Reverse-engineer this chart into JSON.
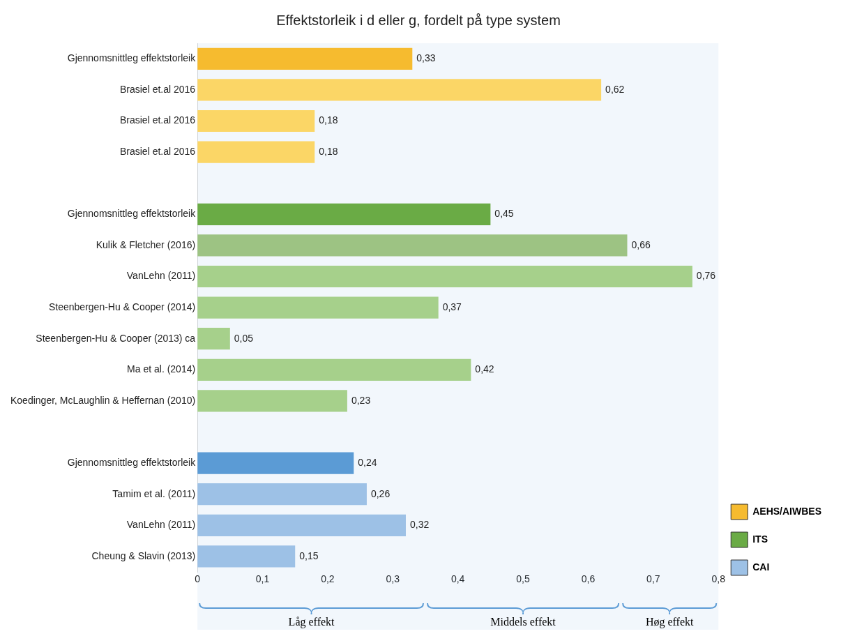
{
  "chart_data": {
    "type": "bar",
    "orientation": "horizontal",
    "title": "Effektstorleik i d eller g, fordelt på type system",
    "categories": [
      "Gjennomsnittleg effektstorleik",
      "Brasiel et.al 2016",
      "Brasiel et.al 2016",
      "Brasiel et.al 2016",
      null,
      "Gjennomsnittleg effektstorleik",
      "Kulik & Fletcher (2016)",
      "VanLehn (2011)",
      "Steenbergen-Hu & Cooper (2014)",
      "Steenbergen-Hu & Cooper (2013) ca",
      "Ma et al. (2014)",
      "Koedinger, McLaughlin & Heffernan (2010)",
      null,
      "Gjennomsnittleg effektstorleik",
      "Tamim et al. (2011)",
      "VanLehn (2011)",
      "Cheung & Slavin (2013)"
    ],
    "series": [
      {
        "name": "AEHS/AIWBES",
        "color": "#f6bb2f",
        "colors": [
          "#f6bb2f",
          "#fbd666",
          "#fbd666",
          "#fbd666",
          null,
          null,
          null,
          null,
          null,
          null,
          null,
          null,
          null,
          null,
          null,
          null,
          null
        ],
        "values": [
          0.33,
          0.62,
          0.18,
          0.18,
          null,
          null,
          null,
          null,
          null,
          null,
          null,
          null,
          null,
          null,
          null,
          null,
          null
        ],
        "value_labels": [
          "0,33",
          "0,62",
          "0,18",
          "0,18",
          null,
          null,
          null,
          null,
          null,
          null,
          null,
          null,
          null,
          null,
          null,
          null,
          null
        ]
      },
      {
        "name": "ITS",
        "color": "#6aab45",
        "colors": [
          null,
          null,
          null,
          null,
          null,
          "#6aab45",
          "#9dc383",
          "#a6d08b",
          "#a6d08b",
          "#a6d08b",
          "#a6d08b",
          "#a6d08b",
          null,
          null,
          null,
          null,
          null
        ],
        "values": [
          null,
          null,
          null,
          null,
          null,
          0.45,
          0.66,
          0.76,
          0.37,
          0.05,
          0.42,
          0.23,
          null,
          null,
          null,
          null,
          null
        ],
        "value_labels": [
          null,
          null,
          null,
          null,
          null,
          "0,45",
          "0,66",
          "0,76",
          "0,37",
          "0,05",
          "0,42",
          "0,23",
          null,
          null,
          null,
          null,
          null
        ]
      },
      {
        "name": "CAI",
        "color": "#9dc1e6",
        "colors": [
          null,
          null,
          null,
          null,
          null,
          null,
          null,
          null,
          null,
          null,
          null,
          null,
          null,
          "#5b9bd5",
          "#9dc1e6",
          "#9dc1e6",
          "#9dc1e6"
        ],
        "values": [
          null,
          null,
          null,
          null,
          null,
          null,
          null,
          null,
          null,
          null,
          null,
          null,
          null,
          0.24,
          0.26,
          0.32,
          0.15
        ],
        "value_labels": [
          null,
          null,
          null,
          null,
          null,
          null,
          null,
          null,
          null,
          null,
          null,
          null,
          null,
          "0,24",
          "0,26",
          "0,32",
          "0,15"
        ]
      }
    ],
    "xlim": [
      0,
      0.8
    ],
    "xticks": [
      0,
      {
        "value": 0.1,
        "label": "0,1"
      },
      {
        "value": 0.2,
        "label": "0,2"
      },
      {
        "value": 0.3,
        "label": "0,3"
      },
      {
        "value": 0.4,
        "label": "0,4"
      },
      {
        "value": 0.5,
        "label": "0,5"
      },
      {
        "value": 0.6,
        "label": "0,6"
      },
      {
        "value": 0.7,
        "label": "0,7"
      },
      {
        "value": 0.8,
        "label": "0,8"
      }
    ],
    "grid": false,
    "legend": "bottom right",
    "bands": [
      {
        "axis": "x",
        "from": 0,
        "to": 0.35,
        "label": "Låg effekt",
        "color": "#5b9bd5"
      },
      {
        "axis": "x",
        "from": 0.35,
        "to": 0.65,
        "label": "Middels effekt",
        "color": "#5b9bd5"
      },
      {
        "axis": "x",
        "from": 0.65,
        "to": 0.8,
        "label": "Høg effekt",
        "color": "#5b9bd5"
      }
    ]
  }
}
